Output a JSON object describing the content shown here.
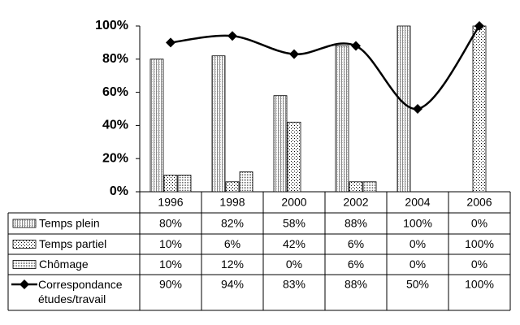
{
  "chart_data": {
    "type": "bar",
    "categories": [
      "1996",
      "1998",
      "2000",
      "2002",
      "2004",
      "2006"
    ],
    "ylim": [
      0,
      100
    ],
    "yticks": [
      {
        "value": 0,
        "label": "0%"
      },
      {
        "value": 20,
        "label": "20%"
      },
      {
        "value": 40,
        "label": "40%"
      },
      {
        "value": 60,
        "label": "60%"
      },
      {
        "value": 80,
        "label": "80%"
      },
      {
        "value": 100,
        "label": "100%"
      }
    ],
    "series": [
      {
        "name": "Temps plein",
        "values": [
          80,
          82,
          58,
          88,
          100,
          0
        ],
        "value_labels": [
          "80%",
          "82%",
          "58%",
          "88%",
          "100%",
          "0%"
        ]
      },
      {
        "name": "Temps partiel",
        "values": [
          10,
          6,
          42,
          6,
          0,
          100
        ],
        "value_labels": [
          "10%",
          "6%",
          "42%",
          "6%",
          "0%",
          "100%"
        ]
      },
      {
        "name": "Chômage",
        "values": [
          10,
          12,
          0,
          6,
          0,
          0
        ],
        "value_labels": [
          "10%",
          "12%",
          "0%",
          "6%",
          "0%",
          "0%"
        ]
      },
      {
        "name": "Correspondance études/travail",
        "type": "line",
        "color": "#000000",
        "values": [
          90,
          94,
          83,
          88,
          50,
          100
        ],
        "value_labels": [
          "90%",
          "94%",
          "83%",
          "88%",
          "50%",
          "100%"
        ]
      }
    ]
  }
}
